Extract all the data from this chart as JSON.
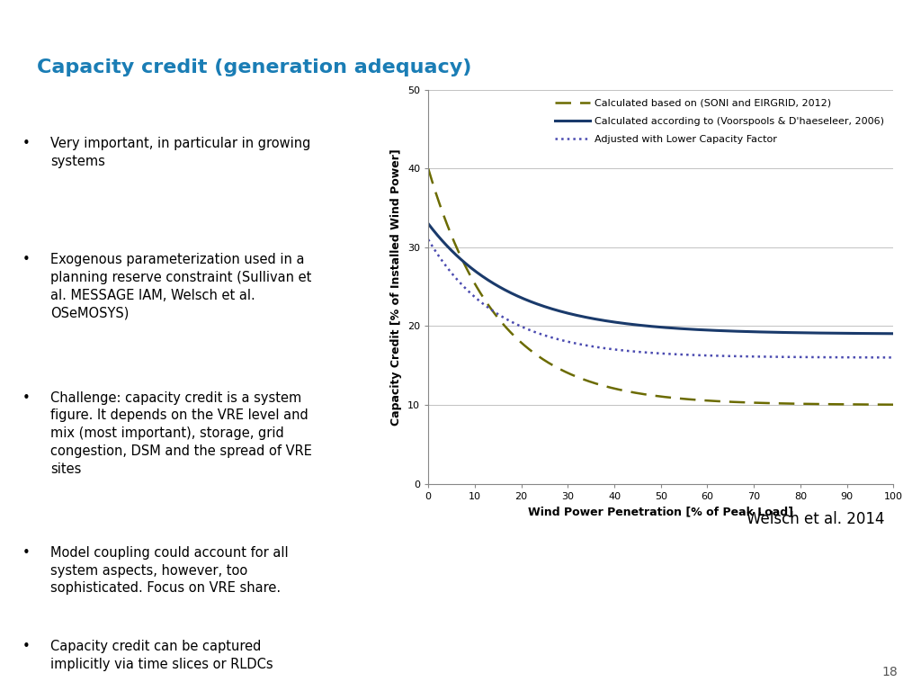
{
  "title": "Capacity credit (generation adequacy)",
  "title_color": "#1a7db5",
  "bullet_points": [
    "Very important, in particular in growing\nsystems",
    "Exogenous parameterization used in a\nplanning reserve constraint (Sullivan et\nal. MESSAGE IAM, Welsch et al.\nOSeMOSYS)",
    "Challenge: capacity credit is a system\nfigure. It depends on the VRE level and\nmix (most important), storage, grid\ncongestion, DSM and the spread of VRE\nsites",
    "Model coupling could account for all\nsystem aspects, however, too\nsophisticated. Focus on VRE share.",
    "Capacity credit can be captured\nimplicitly via time slices or RLDCs"
  ],
  "xlabel": "Wind Power Penetration [% of Peak Load]",
  "ylabel": "Capacity Credit [% of Installed Wind Power]",
  "xlim": [
    0,
    100
  ],
  "ylim": [
    0,
    50
  ],
  "xticks": [
    0,
    10,
    20,
    30,
    40,
    50,
    60,
    70,
    80,
    90,
    100
  ],
  "yticks": [
    0,
    10,
    20,
    30,
    40,
    50
  ],
  "line1_label": "Calculated based on (SONI and EIRGRID, 2012)",
  "line2_label": "Calculated according to (Voorspools & D'haeseleer, 2006)",
  "line3_label": "Adjusted with Lower Capacity Factor",
  "line1_color": "#6b6b00",
  "line2_color": "#1a3a6b",
  "line3_color": "#4a4ab0",
  "watermark": "Welsch et al. 2014",
  "slide_number": "18",
  "background_color": "#ffffff"
}
